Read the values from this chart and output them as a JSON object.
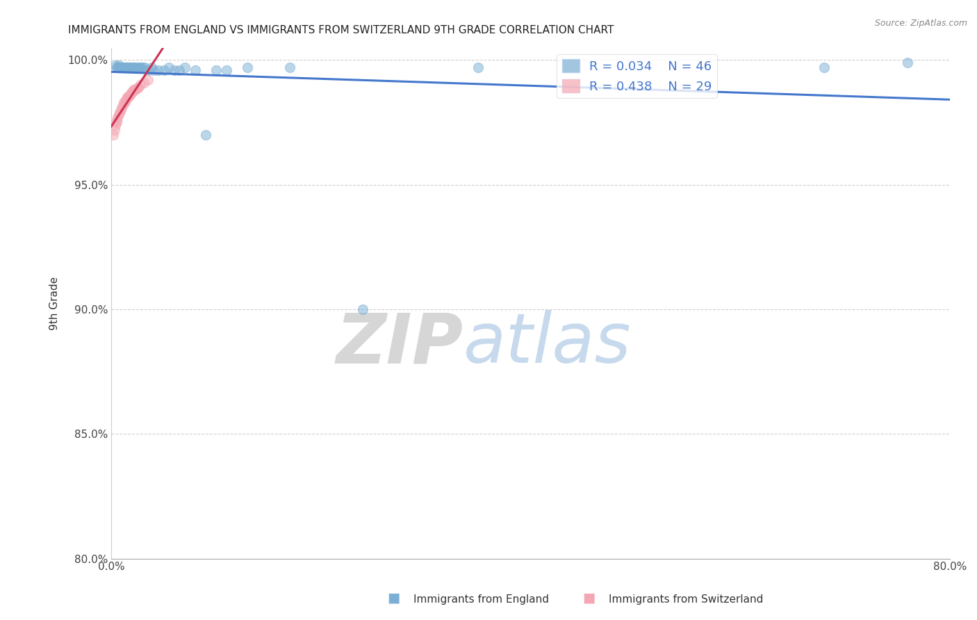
{
  "title": "IMMIGRANTS FROM ENGLAND VS IMMIGRANTS FROM SWITZERLAND 9TH GRADE CORRELATION CHART",
  "source": "Source: ZipAtlas.com",
  "xlabel_bottom": "Immigrants from England",
  "xlabel_bottom2": "Immigrants from Switzerland",
  "ylabel": "9th Grade",
  "watermark_zip": "ZIP",
  "watermark_atlas": "atlas",
  "xlim": [
    0.0,
    0.8
  ],
  "ylim": [
    0.8,
    1.005
  ],
  "yticks": [
    0.8,
    0.85,
    0.9,
    0.95,
    1.0
  ],
  "ytick_labels": [
    "80.0%",
    "85.0%",
    "90.0%",
    "95.0%",
    "100.0%"
  ],
  "xticks": [
    0.0,
    0.1,
    0.2,
    0.3,
    0.4,
    0.5,
    0.6,
    0.7,
    0.8
  ],
  "xtick_labels": [
    "0.0%",
    "",
    "",
    "",
    "",
    "",
    "",
    "",
    "80.0%"
  ],
  "england_R": 0.034,
  "england_N": 46,
  "switzerland_R": 0.438,
  "switzerland_N": 29,
  "england_color": "#7bafd4",
  "switzerland_color": "#f4a7b3",
  "england_line_color": "#4477cc",
  "switzerland_line_color": "#cc3355",
  "england_x": [
    0.004,
    0.005,
    0.006,
    0.007,
    0.008,
    0.009,
    0.01,
    0.01,
    0.011,
    0.012,
    0.013,
    0.014,
    0.015,
    0.015,
    0.016,
    0.017,
    0.018,
    0.019,
    0.02,
    0.021,
    0.022,
    0.023,
    0.025,
    0.027,
    0.028,
    0.03,
    0.032,
    0.035,
    0.038,
    0.04,
    0.045,
    0.05,
    0.055,
    0.06,
    0.065,
    0.07,
    0.08,
    0.09,
    0.1,
    0.11,
    0.13,
    0.17,
    0.24,
    0.35,
    0.68,
    0.76
  ],
  "england_y": [
    0.998,
    0.997,
    0.997,
    0.998,
    0.997,
    0.997,
    0.997,
    0.997,
    0.997,
    0.997,
    0.997,
    0.997,
    0.997,
    0.997,
    0.997,
    0.997,
    0.997,
    0.997,
    0.997,
    0.997,
    0.997,
    0.997,
    0.997,
    0.997,
    0.997,
    0.997,
    0.997,
    0.996,
    0.997,
    0.996,
    0.996,
    0.996,
    0.997,
    0.996,
    0.996,
    0.997,
    0.996,
    0.97,
    0.996,
    0.996,
    0.997,
    0.997,
    0.9,
    0.997,
    0.997,
    0.999
  ],
  "switzerland_x": [
    0.002,
    0.003,
    0.004,
    0.005,
    0.005,
    0.006,
    0.007,
    0.008,
    0.009,
    0.01,
    0.011,
    0.012,
    0.013,
    0.014,
    0.015,
    0.015,
    0.016,
    0.017,
    0.018,
    0.019,
    0.02,
    0.021,
    0.022,
    0.023,
    0.025,
    0.026,
    0.028,
    0.031,
    0.035
  ],
  "switzerland_y": [
    0.97,
    0.972,
    0.974,
    0.975,
    0.976,
    0.977,
    0.978,
    0.979,
    0.98,
    0.981,
    0.982,
    0.983,
    0.983,
    0.984,
    0.985,
    0.985,
    0.985,
    0.986,
    0.986,
    0.987,
    0.987,
    0.988,
    0.988,
    0.988,
    0.989,
    0.989,
    0.99,
    0.991,
    0.992
  ],
  "england_marker_size": 100,
  "switzerland_marker_size": 100
}
